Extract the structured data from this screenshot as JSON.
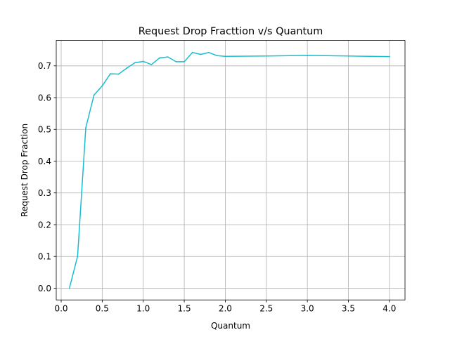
{
  "chart_data": {
    "type": "line",
    "title": "Request Drop Fracttion v/s Quantum",
    "xlabel": "Quantum",
    "ylabel": "Request Drop Fraction",
    "xlim": [
      -0.06,
      4.19
    ],
    "ylim": [
      -0.037,
      0.78
    ],
    "xticks": [
      0.0,
      0.5,
      1.0,
      1.5,
      2.0,
      2.5,
      3.0,
      3.5,
      4.0
    ],
    "xtick_labels": [
      "0.0",
      "0.5",
      "1.0",
      "1.5",
      "2.0",
      "2.5",
      "3.0",
      "3.5",
      "4.0"
    ],
    "yticks": [
      0.0,
      0.1,
      0.2,
      0.3,
      0.4,
      0.5,
      0.6,
      0.7
    ],
    "ytick_labels": [
      "0.0",
      "0.1",
      "0.2",
      "0.3",
      "0.4",
      "0.5",
      "0.6",
      "0.7"
    ],
    "grid": true,
    "series": [
      {
        "color": "#17becf",
        "x": [
          0.1,
          0.2,
          0.3,
          0.4,
          0.5,
          0.6,
          0.7,
          0.8,
          0.9,
          1.0,
          1.1,
          1.2,
          1.3,
          1.4,
          1.5,
          1.6,
          1.7,
          1.8,
          1.9,
          2.0,
          2.5,
          3.0,
          3.5,
          4.0
        ],
        "y": [
          0.0,
          0.1,
          0.505,
          0.608,
          0.637,
          0.675,
          0.674,
          0.693,
          0.71,
          0.714,
          0.704,
          0.725,
          0.728,
          0.713,
          0.713,
          0.742,
          0.736,
          0.742,
          0.732,
          0.73,
          0.731,
          0.733,
          0.731,
          0.729
        ]
      }
    ]
  }
}
